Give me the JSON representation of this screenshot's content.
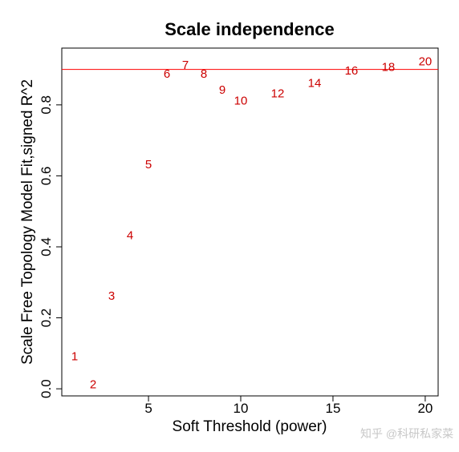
{
  "chart_data": {
    "type": "scatter",
    "title": "Scale independence",
    "xlabel": "Soft Threshold (power)",
    "ylabel": "Scale Free Topology Model Fit,signed R^2",
    "xlim": [
      0.3,
      20.7
    ],
    "ylim": [
      -0.02,
      0.96
    ],
    "x_ticks": [
      5,
      10,
      15,
      20
    ],
    "y_ticks": [
      0.0,
      0.2,
      0.4,
      0.6,
      0.8
    ],
    "y_tick_labels": [
      "0.0",
      "0.2",
      "0.4",
      "0.6",
      "0.8"
    ],
    "hline": 0.9,
    "hline_color": "#ff0000",
    "label_color": "#cc0000",
    "points": [
      {
        "x": 1,
        "y": 0.09,
        "label": "1"
      },
      {
        "x": 2,
        "y": 0.01,
        "label": "2"
      },
      {
        "x": 3,
        "y": 0.26,
        "label": "3"
      },
      {
        "x": 4,
        "y": 0.43,
        "label": "4"
      },
      {
        "x": 5,
        "y": 0.63,
        "label": "5"
      },
      {
        "x": 6,
        "y": 0.885,
        "label": "6"
      },
      {
        "x": 7,
        "y": 0.91,
        "label": "7"
      },
      {
        "x": 8,
        "y": 0.885,
        "label": "8"
      },
      {
        "x": 9,
        "y": 0.84,
        "label": "9"
      },
      {
        "x": 10,
        "y": 0.81,
        "label": "10"
      },
      {
        "x": 12,
        "y": 0.83,
        "label": "12"
      },
      {
        "x": 14,
        "y": 0.86,
        "label": "14"
      },
      {
        "x": 16,
        "y": 0.895,
        "label": "16"
      },
      {
        "x": 18,
        "y": 0.905,
        "label": "18"
      },
      {
        "x": 20,
        "y": 0.92,
        "label": "20"
      }
    ],
    "grid": false,
    "legend": "none"
  },
  "watermark": "知乎 @科研私家菜"
}
